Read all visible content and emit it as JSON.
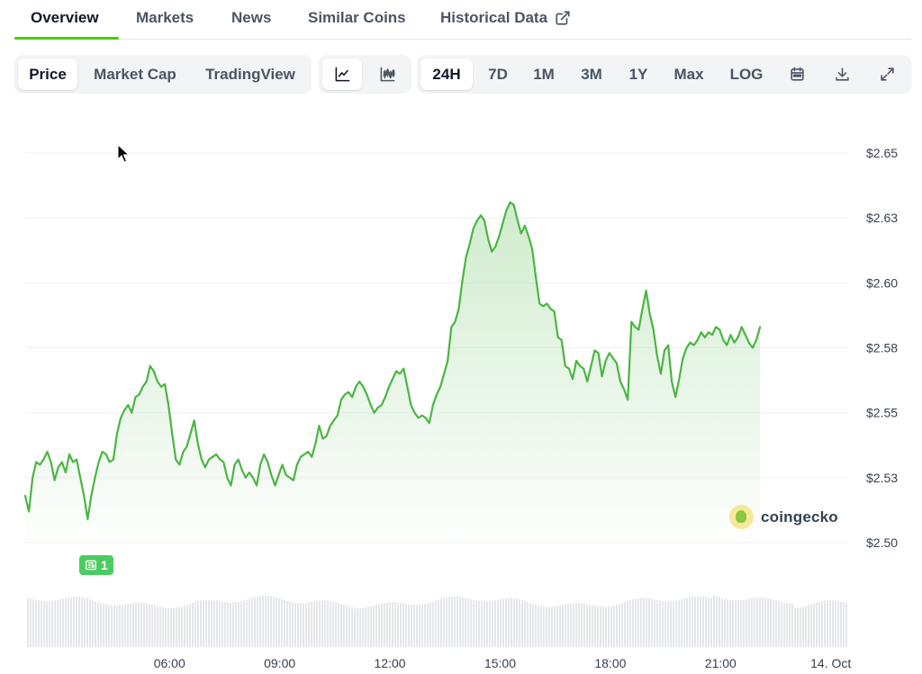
{
  "tabs": {
    "overview": "Overview",
    "markets": "Markets",
    "news": "News",
    "similar": "Similar Coins",
    "historical": "Historical Data"
  },
  "toolbar": {
    "price": "Price",
    "market_cap": "Market Cap",
    "tradingview": "TradingView",
    "line_chart_icon": "line-chart-icon",
    "candlestick_icon": "candlestick-icon",
    "ranges": [
      "24H",
      "7D",
      "1M",
      "3M",
      "1Y",
      "Max"
    ],
    "selected_range": "24H",
    "log": "LOG",
    "calendar_icon": "calendar-icon",
    "download_icon": "download-icon",
    "expand_icon": "expand-icon"
  },
  "watermark": "coingecko",
  "news_badge": {
    "count": "1",
    "icon": "newspaper-icon"
  },
  "colors": {
    "line": "#4bb543",
    "fill": "#4bb543",
    "accent": "#4bcc00",
    "badge": "#4bcc61"
  },
  "chart_data": {
    "type": "area",
    "y_ticks": [
      "$2.65",
      "$2.63",
      "$2.60",
      "$2.58",
      "$2.55",
      "$2.53",
      "$2.50"
    ],
    "y_tick_values": [
      2.65,
      2.625,
      2.6,
      2.575,
      2.55,
      2.525,
      2.5
    ],
    "x_ticks": [
      "06:00",
      "09:00",
      "12:00",
      "15:00",
      "18:00",
      "21:00",
      "14. Oct"
    ],
    "x_tick_hours": [
      6,
      9,
      12,
      15,
      18,
      21,
      24
    ],
    "ylim": [
      2.5,
      2.65
    ],
    "grid": true,
    "series": [
      {
        "points": [
          [
            1.95,
            2.518
          ],
          [
            2.05,
            2.512
          ],
          [
            2.15,
            2.525
          ],
          [
            2.25,
            2.531
          ],
          [
            2.35,
            2.53
          ],
          [
            2.45,
            2.532
          ],
          [
            2.55,
            2.535
          ],
          [
            2.65,
            2.531
          ],
          [
            2.75,
            2.524
          ],
          [
            2.85,
            2.529
          ],
          [
            2.95,
            2.531
          ],
          [
            3.05,
            2.527
          ],
          [
            3.15,
            2.534
          ],
          [
            3.25,
            2.531
          ],
          [
            3.35,
            2.532
          ],
          [
            3.45,
            2.525
          ],
          [
            3.55,
            2.518
          ],
          [
            3.65,
            2.509
          ],
          [
            3.75,
            2.518
          ],
          [
            3.85,
            2.525
          ],
          [
            3.95,
            2.531
          ],
          [
            4.05,
            2.535
          ],
          [
            4.15,
            2.534
          ],
          [
            4.25,
            2.531
          ],
          [
            4.35,
            2.532
          ],
          [
            4.45,
            2.542
          ],
          [
            4.55,
            2.548
          ],
          [
            4.65,
            2.551
          ],
          [
            4.75,
            2.553
          ],
          [
            4.85,
            2.55
          ],
          [
            4.95,
            2.556
          ],
          [
            5.05,
            2.557
          ],
          [
            5.15,
            2.56
          ],
          [
            5.25,
            2.562
          ],
          [
            5.35,
            2.568
          ],
          [
            5.45,
            2.566
          ],
          [
            5.55,
            2.562
          ],
          [
            5.65,
            2.56
          ],
          [
            5.75,
            2.561
          ],
          [
            5.85,
            2.553
          ],
          [
            5.95,
            2.542
          ],
          [
            6.05,
            2.532
          ],
          [
            6.15,
            2.53
          ],
          [
            6.25,
            2.535
          ],
          [
            6.35,
            2.537
          ],
          [
            6.45,
            2.542
          ],
          [
            6.55,
            2.547
          ],
          [
            6.65,
            2.538
          ],
          [
            6.75,
            2.532
          ],
          [
            6.85,
            2.529
          ],
          [
            6.95,
            2.532
          ],
          [
            7.05,
            2.533
          ],
          [
            7.15,
            2.534
          ],
          [
            7.25,
            2.532
          ],
          [
            7.35,
            2.531
          ],
          [
            7.45,
            2.525
          ],
          [
            7.55,
            2.522
          ],
          [
            7.65,
            2.53
          ],
          [
            7.75,
            2.532
          ],
          [
            7.85,
            2.528
          ],
          [
            7.95,
            2.525
          ],
          [
            8.05,
            2.527
          ],
          [
            8.15,
            2.525
          ],
          [
            8.25,
            2.522
          ],
          [
            8.35,
            2.53
          ],
          [
            8.45,
            2.534
          ],
          [
            8.55,
            2.531
          ],
          [
            8.65,
            2.526
          ],
          [
            8.75,
            2.522
          ],
          [
            8.85,
            2.526
          ],
          [
            8.95,
            2.53
          ],
          [
            9.05,
            2.526
          ],
          [
            9.15,
            2.525
          ],
          [
            9.25,
            2.524
          ],
          [
            9.35,
            2.53
          ],
          [
            9.45,
            2.533
          ],
          [
            9.55,
            2.534
          ],
          [
            9.65,
            2.535
          ],
          [
            9.75,
            2.533
          ],
          [
            9.85,
            2.538
          ],
          [
            9.95,
            2.545
          ],
          [
            10.05,
            2.54
          ],
          [
            10.15,
            2.541
          ],
          [
            10.25,
            2.545
          ],
          [
            10.35,
            2.547
          ],
          [
            10.45,
            2.549
          ],
          [
            10.55,
            2.555
          ],
          [
            10.65,
            2.557
          ],
          [
            10.75,
            2.558
          ],
          [
            10.85,
            2.556
          ],
          [
            10.95,
            2.56
          ],
          [
            11.05,
            2.562
          ],
          [
            11.15,
            2.56
          ],
          [
            11.25,
            2.557
          ],
          [
            11.35,
            2.553
          ],
          [
            11.45,
            2.55
          ],
          [
            11.55,
            2.552
          ],
          [
            11.65,
            2.553
          ],
          [
            11.75,
            2.556
          ],
          [
            11.85,
            2.56
          ],
          [
            11.95,
            2.563
          ],
          [
            12.05,
            2.566
          ],
          [
            12.15,
            2.565
          ],
          [
            12.25,
            2.567
          ],
          [
            12.35,
            2.56
          ],
          [
            12.45,
            2.553
          ],
          [
            12.55,
            2.55
          ],
          [
            12.65,
            2.548
          ],
          [
            12.75,
            2.549
          ],
          [
            12.85,
            2.548
          ],
          [
            12.95,
            2.546
          ],
          [
            13.05,
            2.553
          ],
          [
            13.15,
            2.557
          ],
          [
            13.25,
            2.56
          ],
          [
            13.35,
            2.565
          ],
          [
            13.45,
            2.57
          ],
          [
            13.55,
            2.583
          ],
          [
            13.65,
            2.585
          ],
          [
            13.75,
            2.59
          ],
          [
            13.85,
            2.601
          ],
          [
            13.95,
            2.61
          ],
          [
            14.05,
            2.615
          ],
          [
            14.15,
            2.621
          ],
          [
            14.25,
            2.624
          ],
          [
            14.35,
            2.626
          ],
          [
            14.45,
            2.624
          ],
          [
            14.55,
            2.617
          ],
          [
            14.65,
            2.612
          ],
          [
            14.75,
            2.614
          ],
          [
            14.85,
            2.618
          ],
          [
            14.95,
            2.623
          ],
          [
            15.05,
            2.628
          ],
          [
            15.15,
            2.631
          ],
          [
            15.25,
            2.63
          ],
          [
            15.35,
            2.624
          ],
          [
            15.45,
            2.619
          ],
          [
            15.55,
            2.622
          ],
          [
            15.65,
            2.618
          ],
          [
            15.75,
            2.613
          ],
          [
            15.85,
            2.602
          ],
          [
            15.95,
            2.592
          ],
          [
            16.05,
            2.591
          ],
          [
            16.15,
            2.592
          ],
          [
            16.25,
            2.59
          ],
          [
            16.35,
            2.589
          ],
          [
            16.45,
            2.579
          ],
          [
            16.55,
            2.578
          ],
          [
            16.65,
            2.568
          ],
          [
            16.75,
            2.567
          ],
          [
            16.85,
            2.563
          ],
          [
            16.95,
            2.57
          ],
          [
            17.05,
            2.568
          ],
          [
            17.15,
            2.567
          ],
          [
            17.25,
            2.562
          ],
          [
            17.35,
            2.568
          ],
          [
            17.45,
            2.574
          ],
          [
            17.55,
            2.573
          ],
          [
            17.65,
            2.564
          ],
          [
            17.75,
            2.57
          ],
          [
            17.85,
            2.573
          ],
          [
            17.95,
            2.571
          ],
          [
            18.05,
            2.569
          ],
          [
            18.15,
            2.562
          ],
          [
            18.25,
            2.559
          ],
          [
            18.35,
            2.555
          ],
          [
            18.45,
            2.585
          ],
          [
            18.55,
            2.583
          ],
          [
            18.65,
            2.582
          ],
          [
            18.75,
            2.59
          ],
          [
            18.85,
            2.597
          ],
          [
            18.95,
            2.588
          ],
          [
            19.05,
            2.582
          ],
          [
            19.15,
            2.572
          ],
          [
            19.25,
            2.565
          ],
          [
            19.35,
            2.574
          ],
          [
            19.45,
            2.576
          ],
          [
            19.55,
            2.562
          ],
          [
            19.65,
            2.556
          ],
          [
            19.75,
            2.563
          ],
          [
            19.85,
            2.571
          ],
          [
            19.95,
            2.575
          ],
          [
            20.05,
            2.577
          ],
          [
            20.15,
            2.576
          ],
          [
            20.25,
            2.578
          ],
          [
            20.35,
            2.581
          ],
          [
            20.45,
            2.579
          ],
          [
            20.55,
            2.581
          ],
          [
            20.65,
            2.58
          ],
          [
            20.75,
            2.583
          ],
          [
            20.85,
            2.582
          ],
          [
            20.95,
            2.578
          ],
          [
            21.05,
            2.576
          ],
          [
            21.15,
            2.58
          ],
          [
            21.25,
            2.577
          ],
          [
            21.35,
            2.579
          ],
          [
            21.45,
            2.583
          ],
          [
            21.55,
            2.58
          ],
          [
            21.65,
            2.577
          ],
          [
            21.75,
            2.575
          ],
          [
            21.85,
            2.578
          ],
          [
            21.95,
            2.583
          ]
        ]
      }
    ]
  }
}
